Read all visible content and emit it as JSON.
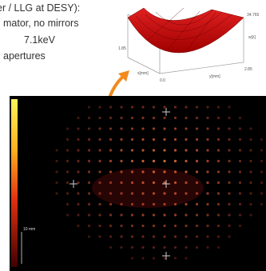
{
  "text_lines": [
    "er / LLG at DESY):",
    "mator, no mirrors",
    "7.1keV",
    "apertures"
  ],
  "surface_plot": {
    "max_label": "34.765",
    "z_label": "w[λ]",
    "left_label": "1.85",
    "right_label": "2.85",
    "x_label": "x[mm]",
    "y_label": "y[mm]",
    "corner_label": "0.0"
  },
  "image": {
    "scale_label": "10 mm"
  }
}
